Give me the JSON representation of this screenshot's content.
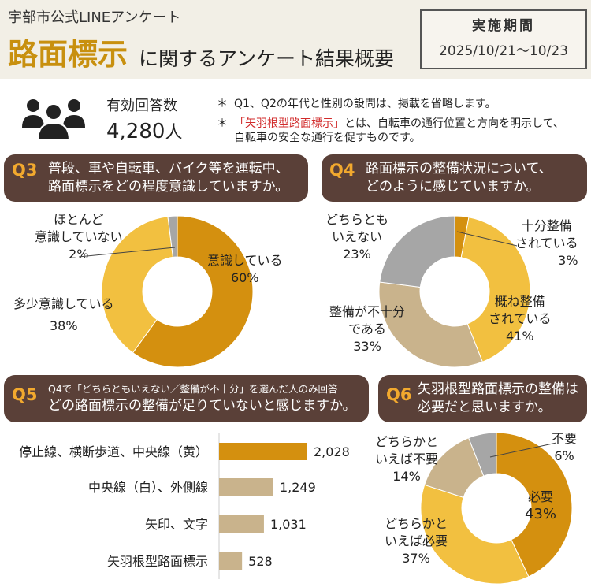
{
  "header": {
    "subtitle": "宇部市公式LINEアンケート",
    "title_main": "路面標示",
    "title_rest": "に関するアンケート結果概要",
    "period_label": "実施期間",
    "period_dates": "2025/10/21〜10/23"
  },
  "responses": {
    "label": "有効回答数",
    "count": "4,280",
    "unit": "人"
  },
  "notes": [
    {
      "star": "＊",
      "text": "Q1、Q2の年代と性別の設問は、掲載を省略します。"
    },
    {
      "star": "＊",
      "highlight": "「矢羽根型路面標示」",
      "text": "とは、自転車の通行位置と方向を明示して、",
      "text2": "自転車の安全な通行を促すものです。"
    }
  ],
  "colors": {
    "brown": "#5a4038",
    "orange": "#f2a92e",
    "gold": "#d4900f",
    "yellow": "#f2c040",
    "tan": "#c9b38c",
    "gray": "#a6a6a6",
    "darkgold": "#c8900f"
  },
  "q3": {
    "number": "Q3",
    "line1": "普段、車や自転車、バイク等を運転中、",
    "line2": "路面標示をどの程度意識していますか。",
    "labels": {
      "a1": "意識している",
      "a2": "60%",
      "b1": "多少意識している",
      "b2": "38%",
      "c1": "ほとんど",
      "c2": "意識していない",
      "c3": "2%"
    }
  },
  "q4": {
    "number": "Q4",
    "line1": "路面標示の整備状況について、",
    "line2": "どのように感じていますか。",
    "labels": {
      "a1": "十分整備",
      "a2": "されている",
      "a3": "3%",
      "b1": "概ね整備",
      "b2": "されている",
      "b3": "41%",
      "c1": "整備が不十分",
      "c2": "である",
      "c3": "33%",
      "d1": "どちらとも",
      "d2": "いえない",
      "d3": "23%"
    }
  },
  "q5": {
    "number": "Q5",
    "line1": "Q4で「どちらともいえない／整備が不十分」を選んだ人のみ回答",
    "line2": "どの路面標示の整備が足りていないと感じますか。"
  },
  "q6": {
    "number": "Q6",
    "line1": "矢羽根型路面標示の整備は",
    "line2": "必要だと思いますか。",
    "labels": {
      "a1": "不要",
      "a2": "6%",
      "b1": "必要",
      "b2": "43%",
      "c1": "どちらかと",
      "c2": "いえば必要",
      "c3": "37%",
      "d1": "どちらかと",
      "d2": "いえば不要",
      "d3": "14%"
    }
  },
  "chart_data": [
    {
      "type": "pie",
      "title": "普段、車や自転車、バイク等を運転中、路面標示をどの程度意識していますか。",
      "categories": [
        "意識している",
        "多少意識している",
        "ほとんど意識していない"
      ],
      "values": [
        60,
        38,
        2
      ],
      "unit": "%"
    },
    {
      "type": "pie",
      "title": "路面標示の整備状況について、どのように感じていますか。",
      "categories": [
        "十分整備されている",
        "概ね整備されている",
        "整備が不十分である",
        "どちらともいえない"
      ],
      "values": [
        3,
        41,
        33,
        23
      ],
      "unit": "%"
    },
    {
      "type": "bar",
      "title": "どの路面標示の整備が足りていないと感じますか。",
      "categories": [
        "停止線、横断歩道、中央線（黄）",
        "中央線（白）、外側線",
        "矢印、文字",
        "矢羽根型路面標示"
      ],
      "values": [
        2028,
        1249,
        1031,
        528
      ],
      "value_labels": [
        "2,028",
        "1,249",
        "1,031",
        "528"
      ]
    },
    {
      "type": "pie",
      "title": "矢羽根型路面標示の整備は必要だと思いますか。",
      "categories": [
        "必要",
        "どちらかといえば必要",
        "どちらかといえば不要",
        "不要"
      ],
      "values": [
        43,
        37,
        14,
        6
      ],
      "unit": "%"
    }
  ]
}
